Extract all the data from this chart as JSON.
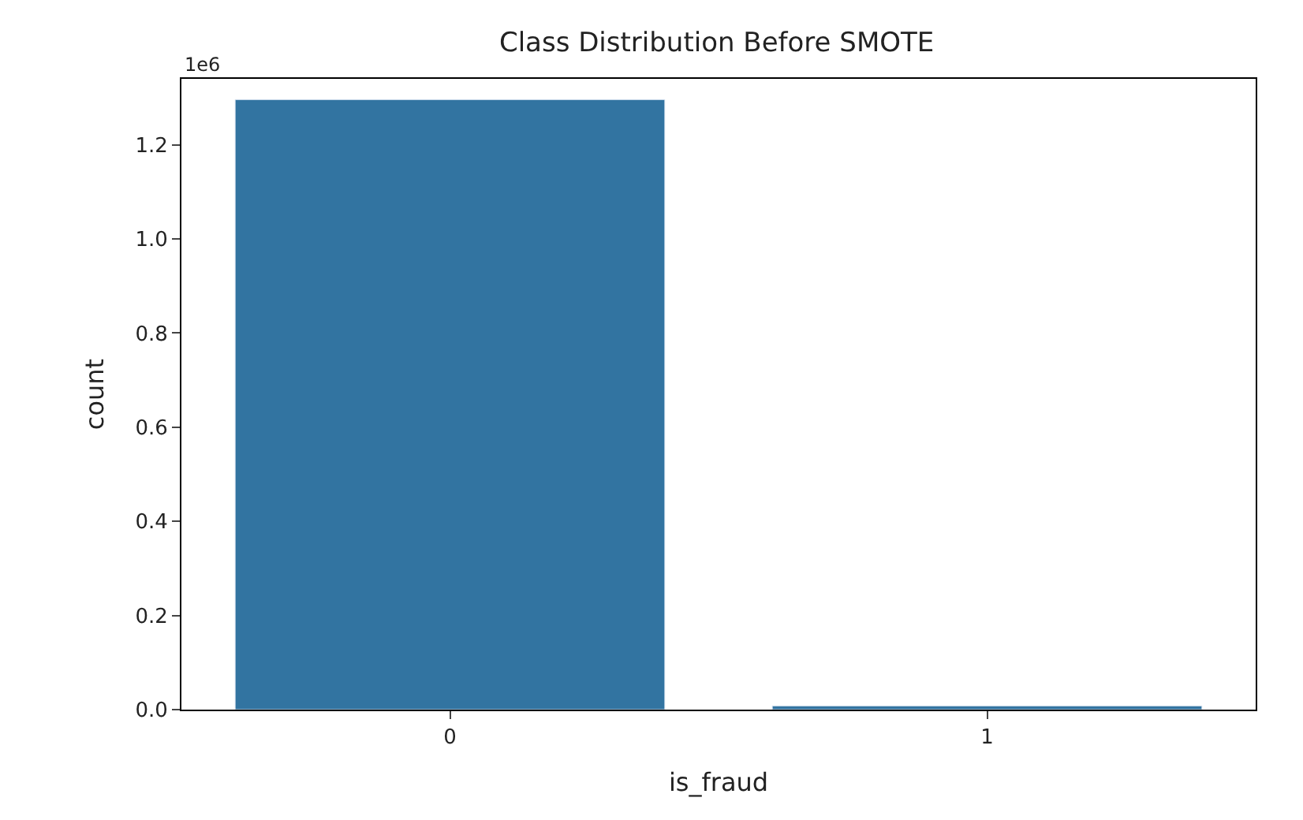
{
  "chart_data": {
    "type": "bar",
    "title": "Class Distribution Before SMOTE",
    "xlabel": "is_fraud",
    "ylabel": "count",
    "categories": [
      "0",
      "1"
    ],
    "values": [
      1.296,
      0.008
    ],
    "color": "#3274a1",
    "ylim": [
      0,
      1.34
    ],
    "yticks": [
      {
        "value": 0,
        "label": "0.0"
      },
      0.2,
      0.4,
      0.6,
      0.8,
      {
        "value": 1,
        "label": "1.0"
      },
      1.2
    ],
    "annotations": [
      "1e6"
    ]
  }
}
